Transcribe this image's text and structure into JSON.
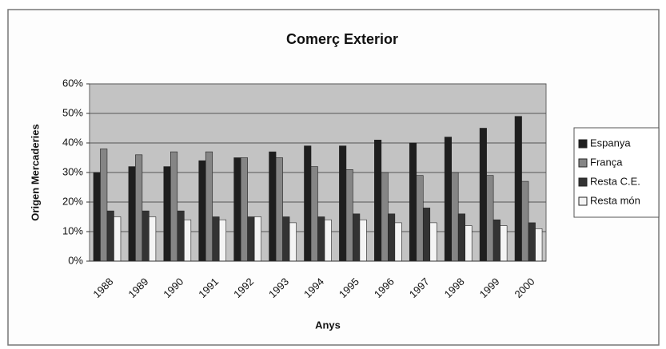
{
  "chart_data": {
    "type": "bar",
    "title": "Comerç Exterior",
    "x_label": "Anys",
    "y_label": "Origen Mercaderies",
    "categories": [
      "1988",
      "1989",
      "1990",
      "1991",
      "1992",
      "1993",
      "1994",
      "1995",
      "1996",
      "1997",
      "1998",
      "1999",
      "2000"
    ],
    "series": [
      {
        "name": "Espanya",
        "color": "#1e1e1e",
        "values": [
          30,
          32,
          32,
          34,
          35,
          37,
          39,
          39,
          41,
          40,
          42,
          45,
          49
        ]
      },
      {
        "name": "França",
        "color": "#858585",
        "values": [
          38,
          36,
          37,
          37,
          35,
          35,
          32,
          31,
          30,
          29,
          30,
          29,
          27
        ]
      },
      {
        "name": "Resta C.E.",
        "color": "#333333",
        "values": [
          17,
          17,
          17,
          15,
          15,
          15,
          15,
          16,
          16,
          18,
          16,
          14,
          13
        ]
      },
      {
        "name": "Resta món",
        "color": "#f4f4f4",
        "values": [
          15,
          15,
          14,
          14,
          15,
          13,
          14,
          14,
          13,
          13,
          12,
          12,
          11
        ]
      }
    ],
    "ylim": [
      0,
      60
    ],
    "yticks": [
      {
        "value": 0,
        "label": "0%"
      },
      {
        "value": 10,
        "label": "10%"
      },
      {
        "value": 20,
        "label": "20%"
      },
      {
        "value": 30,
        "label": "30%"
      },
      {
        "value": 40,
        "label": "40%"
      },
      {
        "value": 50,
        "label": "50%"
      },
      {
        "value": 60,
        "label": "60%"
      }
    ],
    "grid": true
  }
}
